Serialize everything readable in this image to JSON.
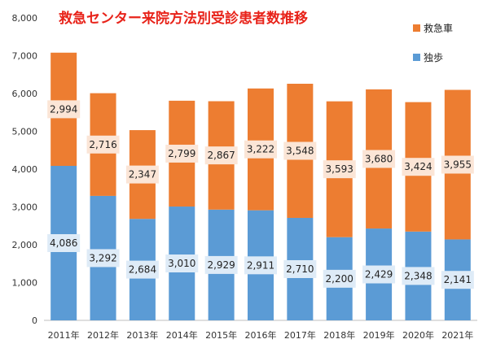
{
  "chart_data": {
    "type": "bar",
    "stacked": true,
    "title": "救急センター来院方法別受診患者数推移",
    "categories": [
      "2011年",
      "2012年",
      "2013年",
      "2014年",
      "2015年",
      "2016年",
      "2017年",
      "2018年",
      "2019年",
      "2020年",
      "2021年"
    ],
    "series": [
      {
        "name": "独歩",
        "color": "#5b9bd5",
        "values": [
          4086,
          3292,
          2684,
          3010,
          2929,
          2911,
          2710,
          2200,
          2429,
          2348,
          2141
        ]
      },
      {
        "name": "救急車",
        "color": "#ed7d31",
        "values": [
          2994,
          2716,
          2347,
          2799,
          2867,
          3222,
          3548,
          3593,
          3680,
          3424,
          3955
        ]
      }
    ],
    "value_labels": {
      "独歩": [
        "4,086",
        "3,292",
        "2,684",
        "3,010",
        "2,929",
        "2,911",
        "2,710",
        "2,200",
        "2,429",
        "2,348",
        "2,141"
      ],
      "救急車": [
        "2,994",
        "2,716",
        "2,347",
        "2,799",
        "2,867",
        "3,222",
        "3,548",
        "3,593",
        "3,680",
        "3,424",
        "3,955"
      ]
    },
    "ylim": [
      0,
      8000
    ],
    "yticks": [
      0,
      1000,
      2000,
      3000,
      4000,
      5000,
      6000,
      7000,
      8000
    ],
    "ytick_labels": [
      "0",
      "1,000",
      "2,000",
      "3,000",
      "4,000",
      "5,000",
      "6,000",
      "7,000",
      "8,000"
    ],
    "grid": false,
    "legend_position": "top-right",
    "legend": [
      {
        "name": "救急車",
        "color": "#ed7d31"
      },
      {
        "name": "独歩",
        "color": "#5b9bd5"
      }
    ],
    "label_box_colors": {
      "独歩": "#deebf7",
      "救急車": "#fbe5d6"
    }
  }
}
